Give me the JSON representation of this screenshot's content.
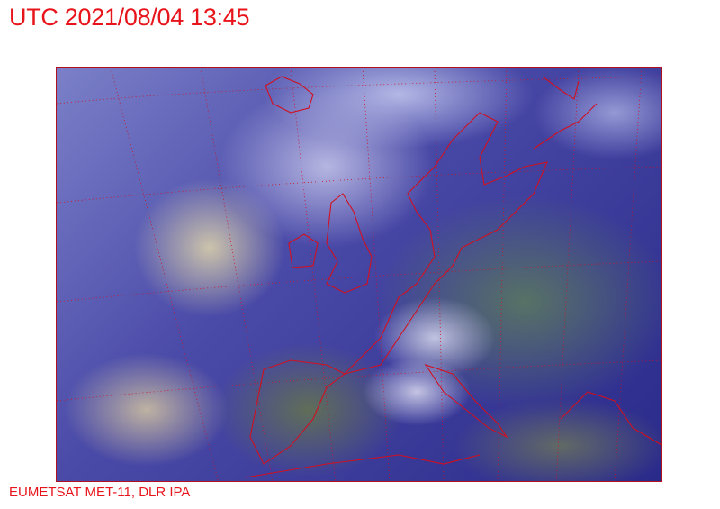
{
  "header": {
    "title": "UTC 2021/08/04 13:45"
  },
  "map": {
    "type": "satellite-imagery",
    "region": "Europe and North Atlantic",
    "overlay_color": "#e8141b",
    "features": [
      "coastlines",
      "lat-lon-grid"
    ]
  },
  "footer": {
    "credit": "EUMETSAT MET-11, DLR IPA"
  }
}
